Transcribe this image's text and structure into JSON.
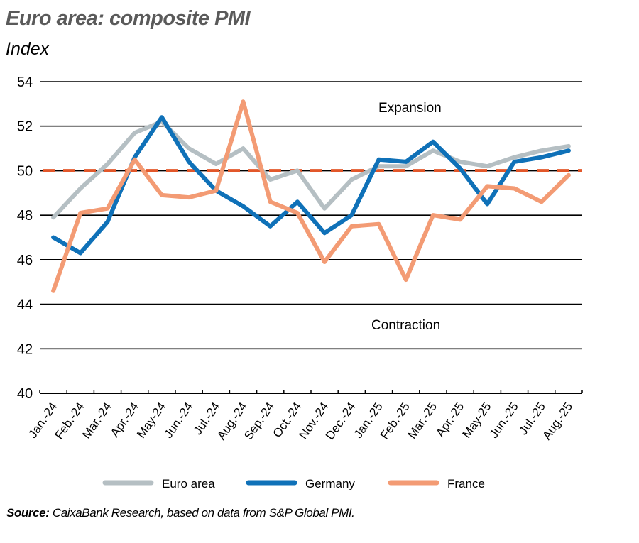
{
  "header": {
    "title": "Euro area: composite PMI",
    "subtitle": "Index"
  },
  "annotations": {
    "expansion": "Expansion",
    "contraction": "Contraction"
  },
  "source": {
    "label": "Source:",
    "text": " CaixaBank Research, based on data from S&P Global PMI."
  },
  "colors": {
    "euro_area": "#b5bfc3",
    "germany": "#0f71b8",
    "france": "#f39b74",
    "threshold": "#e2572a",
    "grid": "#000000",
    "title": "#5a5a5a"
  },
  "chart_data": {
    "type": "line",
    "title": "Euro area: composite PMI",
    "subtitle": "Index",
    "xlabel": "",
    "ylabel": "Index",
    "ylim": [
      40,
      54
    ],
    "yticks": [
      40,
      42,
      44,
      46,
      48,
      50,
      52,
      54
    ],
    "grid": true,
    "legend_position": "bottom",
    "reference_line": {
      "y": 50,
      "style": "dashed",
      "color": "#e2572a"
    },
    "annotations": [
      {
        "text": "Expansion",
        "x": "Feb.-25",
        "y": 52.8
      },
      {
        "text": "Contraction",
        "x": "Feb.-25",
        "y": 43.1
      }
    ],
    "categories": [
      "Jan.-24",
      "Feb.-24",
      "Mar.-24",
      "Apr.-24",
      "May-24",
      "Jun.-24",
      "Jul.-24",
      "Aug.-24",
      "Sep.-24",
      "Oct.-24",
      "Nov.-24",
      "Dec.-24",
      "Jan.-25",
      "Feb.-25",
      "Mar.-25",
      "Apr.-25",
      "May-25",
      "Jun.-25",
      "Jul.-25",
      "Aug.-25"
    ],
    "series": [
      {
        "name": "Euro area",
        "color": "#b5bfc3",
        "values": [
          47.9,
          49.2,
          50.3,
          51.7,
          52.2,
          51.0,
          50.3,
          51.0,
          49.6,
          50.0,
          48.3,
          49.6,
          50.2,
          50.2,
          50.9,
          50.4,
          50.2,
          50.6,
          50.9,
          51.1
        ]
      },
      {
        "name": "Germany",
        "color": "#0f71b8",
        "values": [
          47.0,
          46.3,
          47.7,
          50.6,
          52.4,
          50.4,
          49.1,
          48.4,
          47.5,
          48.6,
          47.2,
          48.0,
          50.5,
          50.4,
          51.3,
          50.1,
          48.5,
          50.4,
          50.6,
          50.9
        ]
      },
      {
        "name": "France",
        "color": "#f39b74",
        "values": [
          44.6,
          48.1,
          48.3,
          50.5,
          48.9,
          48.8,
          49.1,
          53.1,
          48.6,
          48.1,
          45.9,
          47.5,
          47.6,
          45.1,
          48.0,
          47.8,
          49.3,
          49.2,
          48.6,
          49.8
        ]
      }
    ]
  },
  "legend": {
    "items": [
      {
        "label": "Euro area",
        "color": "#b5bfc3"
      },
      {
        "label": "Germany",
        "color": "#0f71b8"
      },
      {
        "label": "France",
        "color": "#f39b74"
      }
    ]
  }
}
